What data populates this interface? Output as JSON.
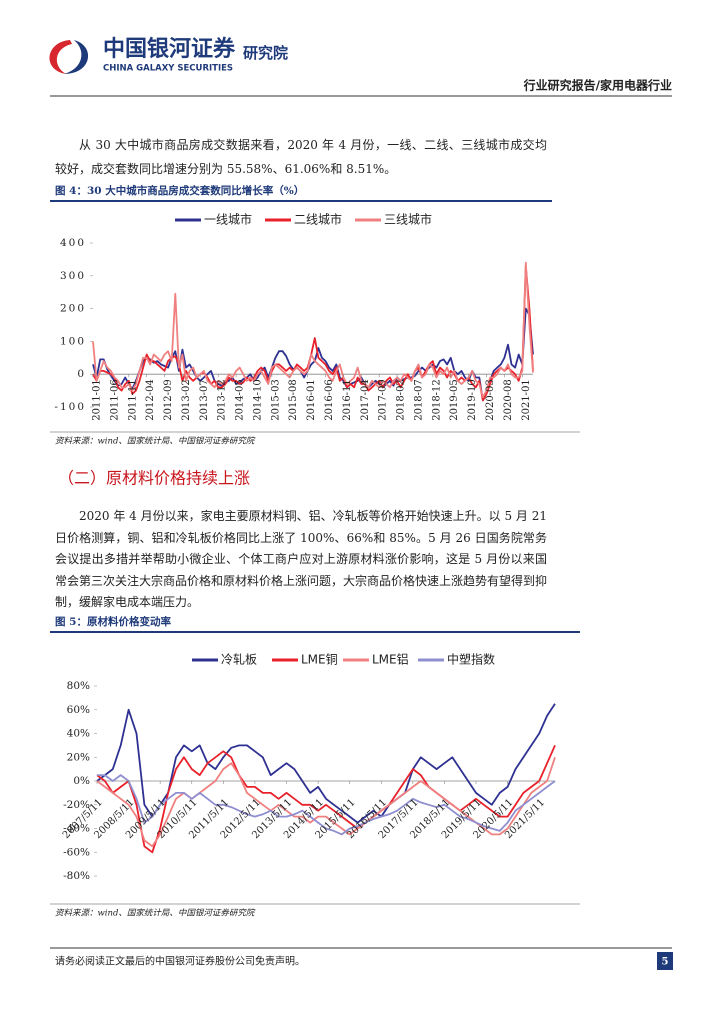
{
  "header": {
    "logo_cn": "中国银河证券",
    "logo_en": "CHINA GALAXY SECURITIES",
    "dept": "研究院",
    "report_type": "行业研究报告/家用电器行业"
  },
  "paragraphs": [
    "从 30 大中城市商品房成交数据来看，2020 年 4 月份，一线、二线、三线城市成交均较好，成交套数同比增速分别为 55.58%、61.06%和 8.51%。",
    "2020 年 4 月份以来，家电主要原材料铜、铝、冷轧板等价格开始快速上升。以 5 月 21 日价格测算，铜、铝和冷轧板价格同比上涨了 100%、66%和 85%。5 月 26 日国务院常务会议提出多措并举帮助小微企业、个体工商户应对上游原材料涨价影响，这是 5 月份以来国常会第三次关注大宗商品价格和原材料价格上涨问题，大宗商品价格快速上涨趋势有望得到抑制，缓解家电成本端压力。"
  ],
  "section_heading": "（二）原材料价格持续上涨",
  "footer": {
    "disclaimer": "请务必阅读正文最后的中国银河证券股份公司免责声明。",
    "page": 5
  },
  "chart_data": [
    {
      "type": "line",
      "title": "图 4：30 大中城市商品房成交套数同比增长率（%）",
      "source": "资料来源：wind、国家统计局、中国银河证券研究院",
      "legend": "top",
      "ylim": [
        -100,
        400
      ],
      "yticks": [
        -100,
        0,
        100,
        200,
        300,
        400
      ],
      "grid": false,
      "categories": [
        "2011-01",
        null,
        null,
        null,
        null,
        "2011-06",
        null,
        null,
        null,
        null,
        "2011-11",
        null,
        null,
        null,
        null,
        "2012-04",
        null,
        null,
        null,
        null,
        "2012-09",
        null,
        null,
        null,
        null,
        "2013-02",
        null,
        null,
        null,
        null,
        "2013-07",
        null,
        null,
        null,
        null,
        "2013-12",
        null,
        null,
        null,
        null,
        "2014-05",
        null,
        null,
        null,
        null,
        "2014-10",
        null,
        null,
        null,
        null,
        "2015-03",
        null,
        null,
        null,
        null,
        "2015-08",
        null,
        null,
        null,
        null,
        "2016-01",
        null,
        null,
        null,
        null,
        "2016-06",
        null,
        null,
        null,
        null,
        "2016-11",
        null,
        null,
        null,
        null,
        "2017-04",
        null,
        null,
        null,
        null,
        "2017-09",
        null,
        null,
        null,
        null,
        "2018-02",
        null,
        null,
        null,
        null,
        "2018-07",
        null,
        null,
        null,
        null,
        "2018-12",
        null,
        null,
        null,
        null,
        "2019-05",
        null,
        null,
        null,
        null,
        "2019-10",
        null,
        null,
        null,
        null,
        "2020-03",
        null,
        null,
        null,
        null,
        "2020-08",
        null,
        null,
        null,
        null,
        "2021-01",
        null,
        null,
        null
      ],
      "series": [
        {
          "name": "一线城市",
          "color": "#2e3192",
          "values": [
            30,
            -10,
            45,
            45,
            15,
            -5,
            -20,
            -35,
            -30,
            -10,
            -30,
            -45,
            -20,
            10,
            40,
            50,
            45,
            35,
            40,
            30,
            25,
            20,
            50,
            70,
            10,
            75,
            20,
            30,
            10,
            -10,
            -20,
            -10,
            0,
            10,
            -20,
            -30,
            -35,
            -25,
            -20,
            -10,
            -30,
            -25,
            -15,
            -10,
            0,
            -20,
            -10,
            10,
            20,
            -10,
            20,
            50,
            70,
            70,
            55,
            30,
            15,
            20,
            10,
            -10,
            10,
            30,
            40,
            80,
            50,
            40,
            20,
            10,
            30,
            -10,
            -20,
            -40,
            -30,
            -25,
            -20,
            -10,
            -30,
            -40,
            -30,
            -20,
            -30,
            -40,
            -30,
            -20,
            -35,
            -10,
            -20,
            -15,
            -10,
            -10,
            -5,
            10,
            20,
            10,
            20,
            30,
            20,
            40,
            45,
            30,
            50,
            10,
            0,
            10,
            -10,
            -20,
            10,
            -10,
            -10,
            -80,
            -50,
            -20,
            10,
            20,
            30,
            50,
            90,
            30,
            20,
            60,
            30,
            200,
            180,
            60
          ]
        },
        {
          "name": "二线城市",
          "color": "#e8212a",
          "values": [
            0,
            -20,
            10,
            10,
            5,
            0,
            -10,
            -40,
            -50,
            -30,
            -20,
            -60,
            -50,
            -20,
            20,
            60,
            40,
            40,
            30,
            20,
            10,
            40,
            50,
            55,
            30,
            -20,
            10,
            -10,
            -20,
            -10,
            0,
            5,
            -10,
            -30,
            -20,
            -40,
            -40,
            -30,
            -10,
            -20,
            -20,
            -30,
            -25,
            -10,
            -20,
            -10,
            10,
            20,
            10,
            -20,
            10,
            30,
            30,
            20,
            10,
            20,
            10,
            30,
            20,
            10,
            20,
            60,
            110,
            50,
            40,
            30,
            10,
            0,
            20,
            -20,
            -10,
            -40,
            -30,
            -40,
            -10,
            -30,
            -30,
            -50,
            -40,
            -30,
            -20,
            -40,
            -20,
            -10,
            -30,
            -20,
            -40,
            -20,
            0,
            -20,
            10,
            20,
            -10,
            10,
            30,
            40,
            0,
            20,
            10,
            -10,
            10,
            0,
            -20,
            -10,
            -20,
            -10,
            -30,
            -40,
            -20,
            -80,
            -60,
            -30,
            0,
            10,
            20,
            10,
            20,
            10,
            0,
            -20,
            20,
            330,
            200,
            10
          ]
        },
        {
          "name": "三线城市",
          "color": "#f08080",
          "values": [
            100,
            -20,
            10,
            40,
            20,
            10,
            -10,
            -20,
            -40,
            -40,
            -30,
            -50,
            -30,
            10,
            50,
            50,
            30,
            60,
            50,
            40,
            60,
            70,
            40,
            245,
            20,
            60,
            -20,
            10,
            20,
            -10,
            0,
            10,
            -20,
            -30,
            -40,
            -20,
            -30,
            -20,
            0,
            -10,
            10,
            20,
            0,
            -20,
            -10,
            -20,
            0,
            10,
            -10,
            -30,
            20,
            30,
            20,
            10,
            0,
            -10,
            10,
            20,
            10,
            0,
            10,
            60,
            40,
            30,
            20,
            10,
            -10,
            -20,
            10,
            30,
            -10,
            -30,
            -20,
            -10,
            20,
            -20,
            -30,
            -40,
            -20,
            -30,
            -40,
            -20,
            -30,
            -40,
            -20,
            -10,
            -20,
            0,
            -10,
            -20,
            10,
            30,
            -10,
            0,
            30,
            20,
            -10,
            10,
            0,
            20,
            -10,
            10,
            -20,
            -30,
            -20,
            -10,
            10,
            -20,
            -30,
            -70,
            -50,
            -10,
            -10,
            0,
            20,
            10,
            30,
            0,
            -10,
            -10,
            10,
            340,
            150,
            5
          ]
        }
      ]
    },
    {
      "type": "line",
      "title": "图 5：原材料价格变动率",
      "source": "资料来源：wind、国家统计局、中国银河证券研究院",
      "legend": "top",
      "ylim": [
        -80,
        80
      ],
      "yticks": [
        {
          "value": -80,
          "label": "-80%"
        },
        {
          "value": -60,
          "label": "-60%"
        },
        {
          "value": -40,
          "label": "-40%"
        },
        {
          "value": -20,
          "label": "-20%"
        },
        {
          "value": 0,
          "label": "0%"
        },
        {
          "value": 20,
          "label": "20%"
        },
        {
          "value": 40,
          "label": "40%"
        },
        {
          "value": 60,
          "label": "60%"
        },
        {
          "value": 80,
          "label": "80%"
        }
      ],
      "grid": false,
      "categories": [
        "2007/5/11",
        null,
        null,
        null,
        "2008/5/11",
        null,
        null,
        null,
        "2009/5/11",
        null,
        null,
        null,
        "2010/5/11",
        null,
        null,
        null,
        "2011/5/11",
        null,
        null,
        null,
        "2012/5/11",
        null,
        null,
        null,
        "2013/5/11",
        null,
        null,
        null,
        "2014/5/11",
        null,
        null,
        null,
        "2015/5/11",
        null,
        null,
        null,
        "2016/5/11",
        null,
        null,
        null,
        "2017/5/11",
        null,
        null,
        null,
        "2018/5/11",
        null,
        null,
        null,
        "2019/5/11",
        null,
        null,
        null,
        "2020/5/11",
        null,
        null,
        null,
        "2021/5/11",
        null,
        null
      ],
      "series": [
        {
          "name": "冷轧板",
          "color": "#2e3192",
          "values": [
            0,
            5,
            10,
            30,
            60,
            40,
            -20,
            -30,
            -20,
            -10,
            20,
            30,
            25,
            30,
            15,
            10,
            20,
            28,
            30,
            30,
            25,
            20,
            5,
            10,
            15,
            10,
            0,
            -10,
            -5,
            -15,
            -20,
            -25,
            -30,
            -35,
            -30,
            -25,
            -30,
            -20,
            -15,
            -10,
            10,
            20,
            15,
            10,
            15,
            20,
            10,
            0,
            -10,
            -15,
            -20,
            -10,
            -5,
            10,
            20,
            30,
            40,
            55,
            65
          ]
        },
        {
          "name": "LME铜",
          "color": "#e8212a",
          "values": [
            5,
            0,
            -10,
            -5,
            0,
            -20,
            -55,
            -60,
            -40,
            -10,
            10,
            20,
            10,
            5,
            15,
            20,
            25,
            20,
            5,
            -5,
            -5,
            -10,
            -10,
            -15,
            -10,
            -15,
            -20,
            -20,
            -25,
            -20,
            -25,
            -30,
            -35,
            -40,
            -35,
            -30,
            -25,
            -20,
            -10,
            0,
            10,
            5,
            -5,
            -10,
            -15,
            -20,
            -25,
            -20,
            -15,
            -20,
            -25,
            -30,
            -30,
            -20,
            -10,
            -5,
            0,
            15,
            30
          ]
        },
        {
          "name": "LME铝",
          "color": "#f08080",
          "values": [
            0,
            -5,
            -10,
            -15,
            -20,
            -30,
            -50,
            -55,
            -45,
            -30,
            -15,
            -10,
            -15,
            -10,
            -5,
            0,
            10,
            15,
            5,
            -10,
            -15,
            -20,
            -25,
            -20,
            -25,
            -30,
            -30,
            -35,
            -30,
            -30,
            -35,
            -40,
            -45,
            -40,
            -35,
            -30,
            -25,
            -20,
            -15,
            -10,
            -5,
            0,
            -5,
            -10,
            -15,
            -20,
            -25,
            -30,
            -35,
            -40,
            -45,
            -45,
            -40,
            -30,
            -20,
            -10,
            -5,
            0,
            20
          ]
        },
        {
          "name": "中塑指数",
          "color": "#8f8fd0",
          "values": [
            5,
            5,
            0,
            5,
            0,
            -15,
            -35,
            -30,
            -20,
            -15,
            -10,
            -10,
            -15,
            -10,
            -15,
            -20,
            -20,
            -22,
            -25,
            -28,
            -30,
            -28,
            -25,
            -30,
            -30,
            -28,
            -25,
            -30,
            -35,
            -40,
            -42,
            -45,
            -40,
            -38,
            -35,
            -32,
            -30,
            -28,
            -25,
            -20,
            -15,
            -18,
            -20,
            -22,
            -20,
            -25,
            -30,
            -32,
            -35,
            -38,
            -40,
            -42,
            -35,
            -25,
            -20,
            -15,
            -10,
            -5,
            0
          ]
        }
      ]
    }
  ]
}
